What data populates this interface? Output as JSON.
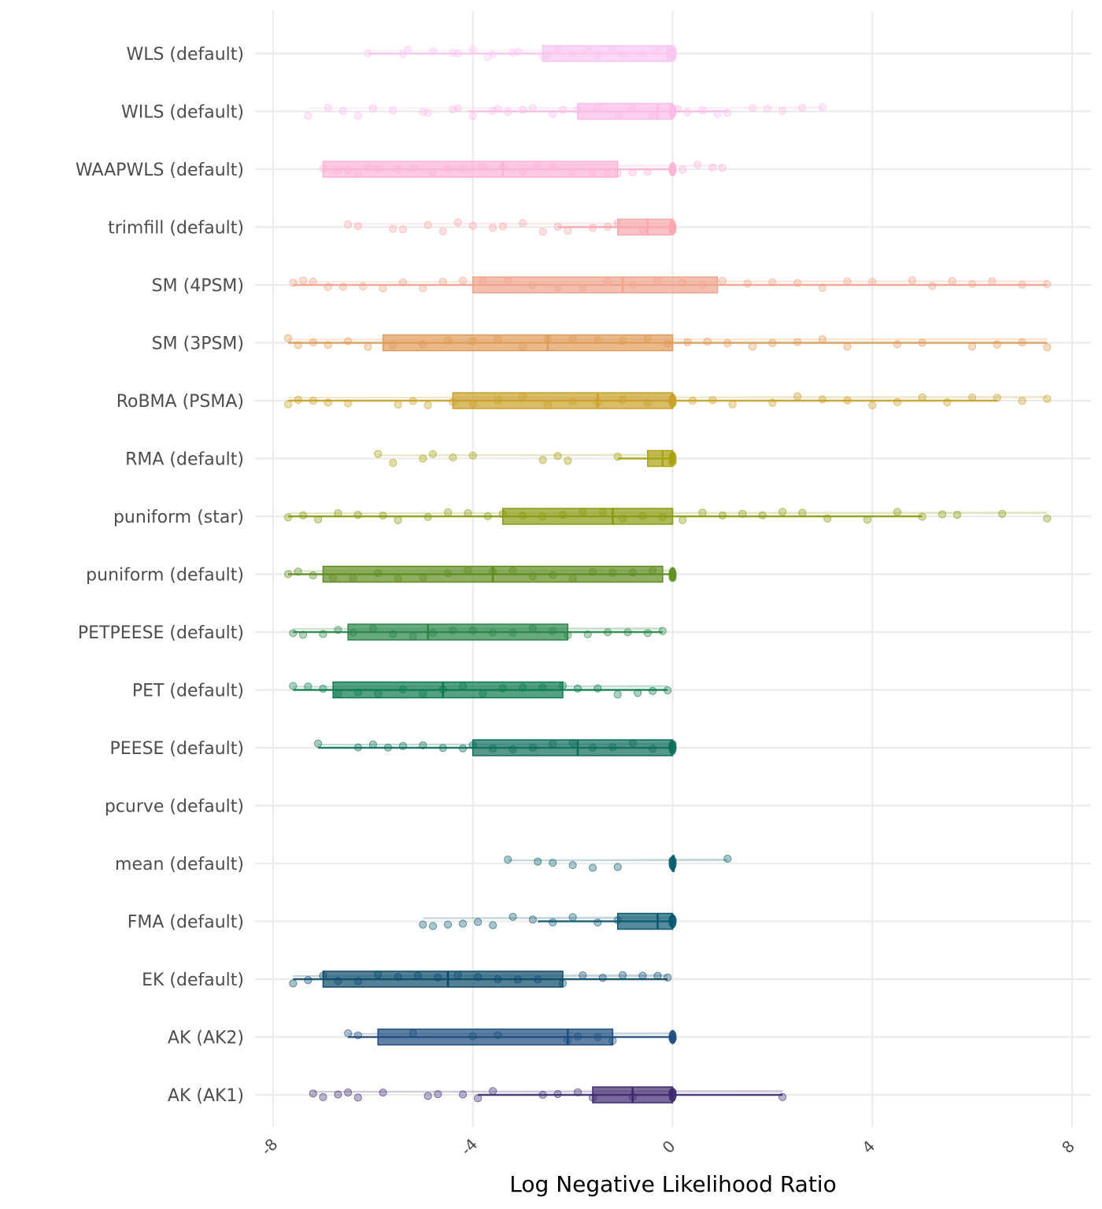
{
  "chart_data": {
    "type": "raincloud-boxplot",
    "title": "",
    "xlabel": "Log Negative Likelihood Ratio",
    "ylabel": "",
    "xlim": [
      -8.0,
      8.0
    ],
    "x_ticks": [
      -8,
      -4,
      0,
      4,
      8
    ],
    "x_tick_labels": [
      "-8",
      "-4",
      "0",
      "4",
      "8"
    ],
    "grid": true,
    "legend": "none",
    "categories": [
      "WLS (default)",
      "WILS (default)",
      "WAAPWLS (default)",
      "trimfill (default)",
      "SM (4PSM)",
      "SM (3PSM)",
      "RoBMA (PSMA)",
      "RMA (default)",
      "puniform (star)",
      "puniform (default)",
      "PETPEESE (default)",
      "PET (default)",
      "PEESE (default)",
      "pcurve (default)",
      "mean (default)",
      "FMA (default)",
      "EK (default)",
      "AK (AK2)",
      "AK (AK1)"
    ],
    "series": [
      {
        "name": "WLS (default)",
        "color": "#F9C6F1",
        "whisker_low": -6.1,
        "q1": -2.6,
        "median": -0.1,
        "q3": 0.0,
        "whisker_high": 0.0,
        "points": [
          -6.1,
          -5.4,
          -5.3,
          -4.8,
          -4.4,
          -4.3,
          -4.0,
          -3.7,
          -3.6,
          -3.2,
          -3.1,
          -2.6,
          -2.5,
          -2.3,
          -2.0,
          -1.7,
          -1.5,
          -1.2,
          -1.0,
          -0.6,
          -0.3,
          0.0,
          0.0
        ]
      },
      {
        "name": "WILS (default)",
        "color": "#F9BCE8",
        "whisker_low": -4.1,
        "q1": -1.9,
        "median": -0.3,
        "q3": 0.0,
        "whisker_high": 1.1,
        "points": [
          -7.3,
          -6.9,
          -6.6,
          -6.3,
          -6.0,
          -5.6,
          -5.0,
          -4.9,
          -4.4,
          -4.3,
          -4.0,
          -3.6,
          -3.5,
          -3.3,
          -3.0,
          -2.8,
          -2.4,
          -2.2,
          -1.9,
          -1.5,
          -1.1,
          -0.8,
          -0.4,
          0.0,
          0.1,
          0.3,
          0.6,
          0.9,
          1.1,
          1.6,
          1.9,
          2.2,
          2.6,
          3.0
        ]
      },
      {
        "name": "WAAPWLS (default)",
        "color": "#FBB3D6",
        "whisker_low": -7.0,
        "q1": -7.0,
        "median": -3.4,
        "q3": -1.1,
        "whisker_high": 0.0,
        "points": [
          -7.0,
          -6.7,
          -6.5,
          -6.3,
          -6.1,
          -5.9,
          -5.5,
          -5.2,
          -4.8,
          -4.5,
          -4.2,
          -3.8,
          -3.4,
          -3.0,
          -2.7,
          -2.4,
          -2.0,
          -1.6,
          -1.3,
          -1.1,
          -0.8,
          -0.5,
          0.0,
          0.2,
          0.5,
          0.8,
          1.0
        ]
      },
      {
        "name": "trimfill (default)",
        "color": "#F8A7AC",
        "whisker_low": -2.3,
        "q1": -1.1,
        "median": -0.5,
        "q3": 0.0,
        "whisker_high": 0.0,
        "points": [
          -6.5,
          -6.3,
          -5.6,
          -5.4,
          -4.9,
          -4.6,
          -4.3,
          -4.0,
          -3.6,
          -3.4,
          -3.0,
          -2.6,
          -2.3,
          -2.1,
          -1.6,
          -1.3,
          -1.1,
          -0.6,
          0.0
        ]
      },
      {
        "name": "SM (4PSM)",
        "color": "#F0A48B",
        "whisker_low": -7.6,
        "q1": -4.0,
        "median": -1.0,
        "q3": 0.9,
        "whisker_high": 7.5,
        "points": [
          -7.6,
          -7.4,
          -7.2,
          -6.9,
          -6.6,
          -6.2,
          -5.8,
          -5.4,
          -5.0,
          -4.6,
          -4.2,
          -3.8,
          -3.3,
          -2.8,
          -2.3,
          -1.8,
          -1.3,
          -0.8,
          -0.3,
          0.2,
          0.6,
          1.0,
          1.5,
          2.0,
          2.5,
          3.0,
          3.5,
          4.0,
          4.8,
          5.2,
          5.6,
          6.0,
          6.4,
          7.0,
          7.5
        ]
      },
      {
        "name": "SM (3PSM)",
        "color": "#E09B58",
        "whisker_low": -7.7,
        "q1": -5.8,
        "median": -2.5,
        "q3": 0.0,
        "whisker_high": 7.5,
        "points": [
          -7.7,
          -7.5,
          -7.2,
          -6.9,
          -6.5,
          -6.1,
          -5.6,
          -5.0,
          -4.5,
          -4.0,
          -3.5,
          -3.0,
          -2.5,
          -2.0,
          -1.5,
          -1.0,
          -0.5,
          -0.1,
          0.3,
          0.7,
          1.1,
          1.6,
          2.0,
          2.5,
          3.0,
          3.5,
          4.5,
          5.0,
          6.0,
          6.5,
          7.0,
          7.5
        ]
      },
      {
        "name": "RoBMA (PSMA)",
        "color": "#C9A028",
        "whisker_low": -7.7,
        "q1": -4.4,
        "median": -1.5,
        "q3": 0.0,
        "whisker_high": 6.5,
        "points": [
          -7.7,
          -7.5,
          -7.2,
          -6.9,
          -6.5,
          -5.5,
          -5.2,
          -4.9,
          -4.4,
          -4.0,
          -3.5,
          -3.0,
          -2.5,
          -2.0,
          -1.5,
          -1.0,
          -0.5,
          0.0,
          0.4,
          0.8,
          1.2,
          2.0,
          2.5,
          3.0,
          3.5,
          4.0,
          4.5,
          5.0,
          5.5,
          6.0,
          6.5,
          7.0,
          7.5
        ]
      },
      {
        "name": "RMA (default)",
        "color": "#A9A110",
        "whisker_low": -1.1,
        "q1": -0.5,
        "median": -0.2,
        "q3": 0.0,
        "whisker_high": 0.0,
        "points": [
          -5.9,
          -5.6,
          -5.0,
          -4.8,
          -4.4,
          -4.0,
          -2.6,
          -2.3,
          -2.1,
          -1.1,
          0.0
        ]
      },
      {
        "name": "puniform (star)",
        "color": "#8A9A10",
        "whisker_low": -7.7,
        "q1": -3.4,
        "median": -1.2,
        "q3": 0.0,
        "whisker_high": 5.0,
        "points": [
          -7.7,
          -7.4,
          -7.1,
          -6.7,
          -6.3,
          -5.8,
          -5.5,
          -4.9,
          -4.5,
          -4.1,
          -3.7,
          -3.4,
          -3.0,
          -2.6,
          -2.2,
          -1.8,
          -1.4,
          -1.0,
          -0.6,
          -0.2,
          0.2,
          0.6,
          1.0,
          1.4,
          1.8,
          2.2,
          2.6,
          3.1,
          3.9,
          4.5,
          5.0,
          5.4,
          5.7,
          6.6,
          7.5
        ]
      },
      {
        "name": "puniform (default)",
        "color": "#5E8C1F",
        "whisker_low": -7.7,
        "q1": -7.0,
        "median": -3.6,
        "q3": -0.2,
        "whisker_high": 0.0,
        "points": [
          -7.7,
          -7.5,
          -7.2,
          -6.8,
          -6.4,
          -5.9,
          -5.5,
          -5.0,
          -4.5,
          -4.1,
          -3.6,
          -3.2,
          -2.8,
          -2.4,
          -2.0,
          -1.6,
          -1.2,
          -0.8,
          -0.4,
          0.0
        ]
      },
      {
        "name": "PETPEESE (default)",
        "color": "#2A8547",
        "whisker_low": -7.6,
        "q1": -6.5,
        "median": -4.9,
        "q3": -2.1,
        "whisker_high": -0.2,
        "points": [
          -7.6,
          -7.4,
          -7.0,
          -6.7,
          -6.4,
          -6.0,
          -5.6,
          -5.2,
          -4.8,
          -4.4,
          -4.0,
          -3.6,
          -3.2,
          -2.8,
          -2.4,
          -2.1,
          -1.7,
          -1.3,
          -0.9,
          -0.5,
          -0.2
        ]
      },
      {
        "name": "PET (default)",
        "color": "#0C7A4E",
        "whisker_low": -7.6,
        "q1": -6.8,
        "median": -4.6,
        "q3": -2.2,
        "whisker_high": -0.1,
        "points": [
          -7.6,
          -7.3,
          -7.0,
          -6.7,
          -6.3,
          -5.9,
          -5.4,
          -5.0,
          -4.6,
          -4.2,
          -3.8,
          -3.4,
          -3.0,
          -2.6,
          -2.2,
          -1.9,
          -1.5,
          -1.1,
          -0.7,
          -0.4,
          -0.1
        ]
      },
      {
        "name": "PEESE (default)",
        "color": "#0E6E5A",
        "whisker_low": -7.1,
        "q1": -4.0,
        "median": -1.9,
        "q3": 0.0,
        "whisker_high": 0.0,
        "points": [
          -7.1,
          -6.3,
          -6.0,
          -5.7,
          -5.4,
          -5.0,
          -4.6,
          -4.2,
          -4.0,
          -3.6,
          -3.2,
          -2.8,
          -2.4,
          -2.0,
          -1.6,
          -1.2,
          -0.8,
          -0.4,
          0.0
        ]
      },
      {
        "name": "pcurve (default)",
        "color": "#0B6A6A",
        "points": []
      },
      {
        "name": "mean (default)",
        "color": "#0A5F6E",
        "whisker_low": 0.0,
        "q1": 0.0,
        "median": 0.0,
        "q3": 0.0,
        "whisker_high": 0.0,
        "points": [
          -3.3,
          -2.7,
          -2.4,
          -2.0,
          -1.6,
          -1.1,
          0.0,
          1.1
        ]
      },
      {
        "name": "FMA (default)",
        "color": "#0B5870",
        "whisker_low": -2.7,
        "q1": -1.1,
        "median": -0.3,
        "q3": 0.0,
        "whisker_high": 0.0,
        "points": [
          -5.0,
          -4.8,
          -4.5,
          -4.2,
          -3.9,
          -3.6,
          -3.2,
          -2.8,
          -2.4,
          -2.0,
          -1.5,
          -1.1,
          0.0
        ]
      },
      {
        "name": "EK (default)",
        "color": "#0A4A6A",
        "whisker_low": -7.6,
        "q1": -7.0,
        "median": -4.5,
        "q3": -2.2,
        "whisker_high": -0.1,
        "points": [
          -7.6,
          -7.3,
          -7.0,
          -6.7,
          -6.3,
          -5.9,
          -5.5,
          -5.1,
          -4.7,
          -4.3,
          -3.9,
          -3.5,
          -3.1,
          -2.7,
          -2.2,
          -1.8,
          -1.4,
          -1.0,
          -0.6,
          -0.3,
          -0.1
        ]
      },
      {
        "name": "AK (AK2)",
        "color": "#1D4C7E",
        "whisker_low": -6.5,
        "q1": -5.9,
        "median": -2.1,
        "q3": -1.2,
        "whisker_high": 0.0,
        "points": [
          -6.5,
          -6.3,
          -5.2,
          -4.0,
          -3.5,
          -2.1,
          -1.9,
          -1.5,
          -1.2,
          0.0
        ]
      },
      {
        "name": "AK (AK1)",
        "color": "#3D2A6E",
        "whisker_low": -3.9,
        "q1": -1.6,
        "median": -0.8,
        "q3": 0.0,
        "whisker_high": 2.2,
        "points": [
          -7.2,
          -7.0,
          -6.7,
          -6.5,
          -6.3,
          -5.8,
          -4.9,
          -4.7,
          -4.2,
          -3.9,
          -3.6,
          -2.6,
          -2.3,
          -1.9,
          -1.6,
          -0.8,
          0.0,
          2.2
        ]
      }
    ]
  }
}
